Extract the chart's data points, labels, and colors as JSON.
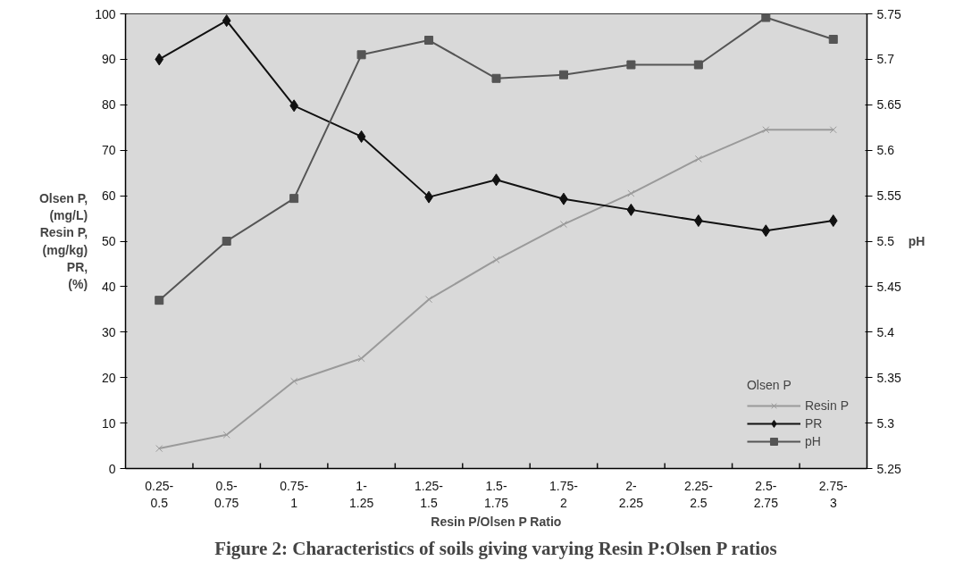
{
  "chart_data": {
    "type": "line",
    "title": "Figure 2: Characteristics of soils giving varying Resin P:Olsen P ratios",
    "xlabel": "Resin P/Olsen P Ratio",
    "ylabel": "Olsen P,\n(mg/L)\nResin P,\n(mg/kg)\nPR,\n(%)",
    "y2label": "pH",
    "legend_title": "Olsen P",
    "categories": [
      "0.25-0.5",
      "0.5-0.75",
      "0.75-1",
      "1-1.25",
      "1.25-1.5",
      "1.5-1.75",
      "1.75-2",
      "2-2.25",
      "2.25-2.5",
      "2.5-2.75",
      "2.75-3"
    ],
    "series": [
      {
        "name": "Resin P",
        "color": "#9a9a9a",
        "marker": "cross",
        "values": [
          4.4,
          7.4,
          19.2,
          24.2,
          37.2,
          45.9,
          53.7,
          60.5,
          68.1,
          74.5,
          74.5
        ]
      },
      {
        "name": "PR",
        "color": "#111111",
        "marker": "diamond",
        "values": [
          90,
          98.5,
          79.8,
          73,
          59.7,
          63.5,
          59.3,
          56.9,
          54.5,
          52.3,
          54.5
        ]
      },
      {
        "name": "pH",
        "color": "#555555",
        "marker": "square",
        "axis": "y2",
        "values": [
          5.435,
          5.5,
          5.547,
          5.705,
          5.721,
          5.679,
          5.683,
          5.694,
          5.694,
          5.746,
          5.722
        ]
      }
    ],
    "ylim": [
      0,
      100
    ],
    "yticks": [
      0,
      10,
      20,
      30,
      40,
      50,
      60,
      70,
      80,
      90,
      100
    ],
    "y2lim": [
      5.25,
      5.75
    ],
    "y2ticks": [
      5.25,
      5.3,
      5.35,
      5.4,
      5.45,
      5.5,
      5.55,
      5.6,
      5.65,
      5.7,
      5.75
    ],
    "grid": false,
    "legend": "bottom right",
    "line_style": "solid"
  }
}
